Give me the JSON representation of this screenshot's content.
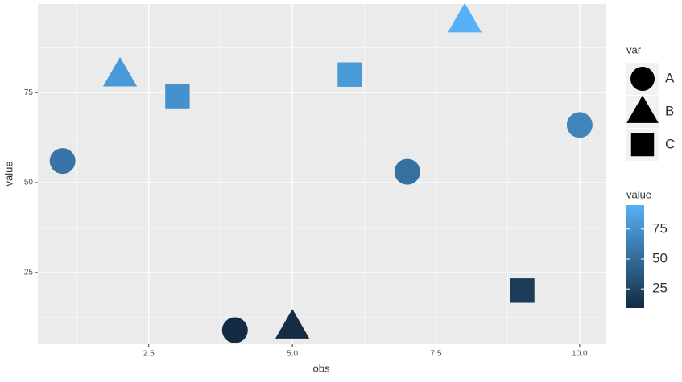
{
  "chart_data": {
    "type": "scatter",
    "x_label": "obs",
    "y_label": "value",
    "x": [
      1,
      2,
      3,
      4,
      5,
      6,
      7,
      8,
      9,
      10
    ],
    "values": [
      56,
      80,
      74,
      9,
      10,
      80,
      53,
      95,
      20,
      66
    ],
    "var": [
      "A",
      "B",
      "C",
      "A",
      "B",
      "C",
      "A",
      "B",
      "C",
      "A"
    ],
    "xlim": [
      0.57,
      10.45
    ],
    "xticks": [
      {
        "value": 2.5,
        "label": "2.5"
      },
      {
        "value": 5,
        "label": "5.0"
      },
      {
        "value": 7.5,
        "label": "7.5"
      },
      {
        "value": 10,
        "label": "10.0"
      }
    ],
    "ylim": [
      5.1,
      99.6
    ],
    "yticks": [
      25,
      50,
      75
    ],
    "grid": true,
    "shape_legend": {
      "title": "var",
      "levels": [
        "A",
        "B",
        "C"
      ],
      "shapes": [
        "circle",
        "triangle",
        "square"
      ]
    },
    "color_legend": {
      "title": "value",
      "ticks": [
        25,
        50,
        75
      ],
      "low": "#132B43",
      "high": "#56B1F7"
    }
  }
}
